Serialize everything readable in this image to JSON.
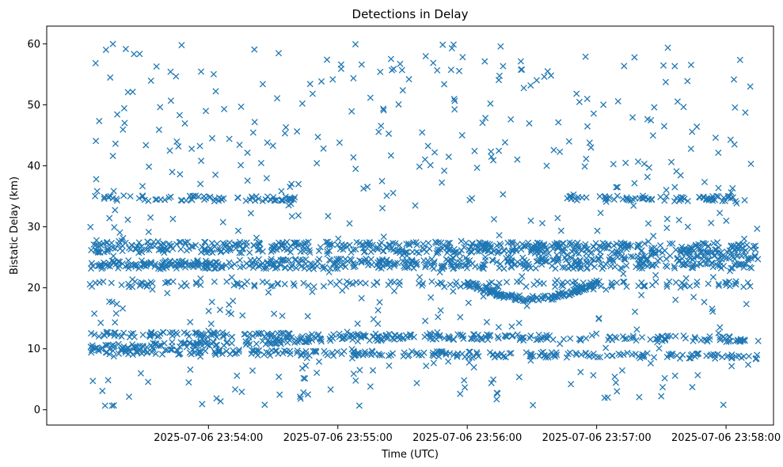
{
  "chart_data": {
    "type": "scatter",
    "title": "Detections in Delay",
    "xlabel": "Time (UTC)",
    "ylabel": "Bistatic Delay (km)",
    "marker": "x",
    "color": "#1f77b4",
    "grid": false,
    "legend": "none",
    "x_range": [
      "2025-07-06 23:52:45",
      "2025-07-06 23:58:22"
    ],
    "ylim": [
      -2.5,
      62.9
    ],
    "x_ticks": [
      "2025-07-06 23:54:00",
      "2025-07-06 23:55:00",
      "2025-07-06 23:56:00",
      "2025-07-06 23:57:00",
      "2025-07-06 23:58:00"
    ],
    "y_ticks": [
      "0",
      "10",
      "20",
      "30",
      "40",
      "50",
      "60"
    ],
    "series": [
      {
        "x_start": "2025-07-06 23:53:05",
        "x_end": "2025-07-06 23:58:15",
        "y_start": 27.2,
        "y_end": 26.9,
        "tracks": "dense horizontal band"
      },
      {
        "x_start": "2025-07-06 23:53:05",
        "x_end": "2025-07-06 23:58:15",
        "y_start": 26.2,
        "y_end": 26.0,
        "tracks": "dense horizontal band"
      },
      {
        "x_start": "2025-07-06 23:53:05",
        "x_end": "2025-07-06 23:58:15",
        "y_start": 24.0,
        "y_end": 25.0,
        "tracks": "dense horizontal band"
      },
      {
        "x_start": "2025-07-06 23:53:05",
        "x_end": "2025-07-06 23:58:15",
        "y_start": 23.5,
        "y_end": 23.6,
        "tracks": "dense horizontal band"
      },
      {
        "x_start": "2025-07-06 23:53:05",
        "x_end": "2025-07-06 23:58:15",
        "y_start": 20.6,
        "y_end": 20.6,
        "tracks": "horizontal band"
      },
      {
        "x_start": "2025-07-06 23:53:05",
        "x_end": "2025-07-06 23:54:40",
        "y_start": 34.7,
        "y_end": 34.6,
        "tracks": "short band"
      },
      {
        "x_start": "2025-07-06 23:56:45",
        "x_end": "2025-07-06 23:58:05",
        "y_start": 34.7,
        "y_end": 34.6,
        "tracks": "short band"
      },
      {
        "x_start": "2025-07-06 23:53:05",
        "x_end": "2025-07-06 23:58:15",
        "y_start": 12.4,
        "y_end": 11.6,
        "tracks": "dense horizontal band"
      },
      {
        "x_start": "2025-07-06 23:53:05",
        "x_end": "2025-07-06 23:58:15",
        "y_start": 9.6,
        "y_end": 8.7,
        "tracks": "dense horizontal band"
      },
      {
        "x_start": "2025-07-06 23:53:05",
        "x_end": "2025-07-06 23:55:30",
        "y_start": 10.2,
        "y_end": 11.9,
        "tracks": "band"
      },
      {
        "x_start": "2025-07-06 23:56:00",
        "x_end": "2025-07-06 23:57:00",
        "y_start": 20.8,
        "y_end": 18.2,
        "tracks": "dipping band"
      },
      {
        "x_start": "2025-07-06 23:53:05",
        "x_end": "2025-07-06 23:58:15",
        "y_start": 0.5,
        "y_end": 60.0,
        "tracks": "random clutter"
      }
    ]
  }
}
